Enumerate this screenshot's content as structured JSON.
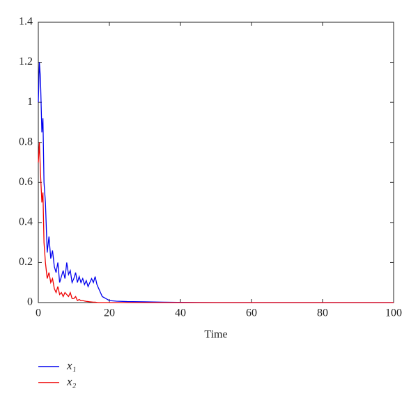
{
  "chart_data": {
    "type": "line",
    "xlabel": "Time",
    "x": [
      0,
      0.3,
      0.6,
      1,
      1.3,
      1.6,
      2,
      2.5,
      3,
      3.5,
      4,
      4.5,
      5,
      5.5,
      6,
      6.5,
      7,
      7.5,
      8,
      8.5,
      9,
      9.5,
      10,
      10.5,
      11,
      11.5,
      12,
      12.5,
      13,
      13.5,
      14,
      14.5,
      15,
      15.5,
      16,
      16.5,
      17,
      17.5,
      18,
      19,
      20,
      22,
      25,
      30,
      35,
      40,
      50,
      60,
      70,
      80,
      90,
      100
    ],
    "series": [
      {
        "name": "x₁",
        "color": "#0000ee",
        "values": [
          1.0,
          1.2,
          1.12,
          0.85,
          0.92,
          0.6,
          0.5,
          0.25,
          0.33,
          0.22,
          0.26,
          0.18,
          0.15,
          0.2,
          0.1,
          0.13,
          0.16,
          0.12,
          0.2,
          0.14,
          0.16,
          0.1,
          0.12,
          0.15,
          0.1,
          0.13,
          0.1,
          0.12,
          0.09,
          0.11,
          0.08,
          0.1,
          0.12,
          0.1,
          0.13,
          0.09,
          0.07,
          0.05,
          0.03,
          0.02,
          0.01,
          0.007,
          0.005,
          0.004,
          0.002,
          0.001,
          0,
          0,
          0,
          0,
          0,
          0
        ]
      },
      {
        "name": "x₂",
        "color": "#ee0000",
        "values": [
          0.7,
          0.8,
          0.65,
          0.5,
          0.55,
          0.3,
          0.2,
          0.12,
          0.15,
          0.1,
          0.12,
          0.07,
          0.05,
          0.08,
          0.04,
          0.05,
          0.03,
          0.05,
          0.04,
          0.03,
          0.05,
          0.02,
          0.02,
          0.03,
          0.01,
          0.015,
          0.01,
          0.01,
          0.008,
          0.006,
          0.005,
          0.004,
          0.003,
          0.002,
          0.002,
          0.001,
          0,
          0,
          0,
          0,
          0,
          0,
          0,
          0,
          0,
          0,
          0,
          0,
          0,
          0,
          0,
          0
        ]
      }
    ],
    "xlim": [
      0,
      100
    ],
    "xticks": [
      0,
      20,
      40,
      60,
      80,
      100
    ],
    "ylim": [
      0,
      1.4
    ],
    "yticks": [
      0,
      0.2,
      0.4,
      0.6,
      0.8,
      1,
      1.2,
      1.4
    ]
  }
}
